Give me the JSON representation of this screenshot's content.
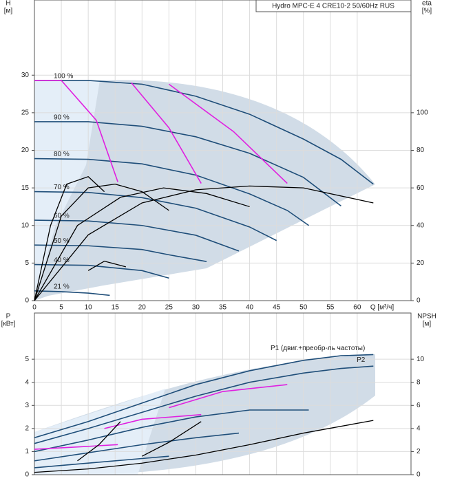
{
  "chart_data": [
    {
      "type": "line",
      "title": "Hydro MPC-E 4 CRE10-2 50/60Hz RUS",
      "ylabel": [
        "H",
        "[м]"
      ],
      "y2label": [
        "eta",
        "[%]"
      ],
      "xlabel": "Q [м³/ч]",
      "xlim": [
        0,
        70
      ],
      "xticks": [
        0,
        5,
        10,
        15,
        20,
        25,
        30,
        35,
        40,
        45,
        50,
        55,
        60
      ],
      "xtick_labels": true,
      "ylim": [
        0,
        40
      ],
      "yticks": [
        0,
        5,
        10,
        15,
        20,
        25,
        30
      ],
      "y2lim": [
        0,
        160
      ],
      "y2ticks": [
        0,
        20,
        40,
        60,
        80,
        100
      ],
      "grid": true,
      "series_labels": "start",
      "series": [
        {
          "name": "100 %",
          "color": "#1f4e79",
          "x": [
            0,
            10,
            20,
            30,
            40,
            50,
            57,
            63
          ],
          "values": [
            29.3,
            29.3,
            28.8,
            27.2,
            24.8,
            21.5,
            18.8,
            15.5
          ]
        },
        {
          "name": "90 %",
          "color": "#1f4e79",
          "x": [
            0,
            10,
            20,
            30,
            40,
            50,
            57
          ],
          "values": [
            23.8,
            23.8,
            23.2,
            21.8,
            19.6,
            16.4,
            12.6
          ]
        },
        {
          "name": "80 %",
          "color": "#1f4e79",
          "x": [
            0,
            10,
            20,
            30,
            40,
            47,
            51
          ],
          "values": [
            18.9,
            18.8,
            18.2,
            16.7,
            14.2,
            12,
            10
          ]
        },
        {
          "name": "70 %",
          "color": "#1f4e79",
          "x": [
            0,
            10,
            20,
            30,
            40,
            45
          ],
          "values": [
            14.5,
            14.4,
            13.7,
            12.3,
            9.8,
            8
          ]
        },
        {
          "name": "60 %",
          "color": "#1f4e79",
          "x": [
            0,
            10,
            20,
            30,
            38
          ],
          "values": [
            10.7,
            10.6,
            10,
            8.7,
            6.6
          ]
        },
        {
          "name": "50 %",
          "color": "#1f4e79",
          "x": [
            0,
            10,
            20,
            25,
            32
          ],
          "values": [
            7.4,
            7.3,
            6.8,
            6.1,
            5.2
          ]
        },
        {
          "name": "40 %",
          "color": "#1f4e79",
          "x": [
            0,
            10,
            20,
            25
          ],
          "values": [
            4.8,
            4.7,
            4,
            3
          ]
        },
        {
          "name": "21 %",
          "color": "#1f4e79",
          "x": [
            0,
            5,
            10,
            14
          ],
          "values": [
            1.3,
            1.2,
            1,
            0.7
          ]
        },
        {
          "color": "#e020e0",
          "x": [
            0,
            5,
            11.5,
            15.5
          ],
          "values": [
            29.3,
            29.3,
            24,
            15.8
          ]
        },
        {
          "color": "#e020e0",
          "x": [
            18,
            25,
            31
          ],
          "values": [
            29,
            23,
            15.6
          ]
        },
        {
          "color": "#e020e0",
          "x": [
            25,
            37,
            47
          ],
          "values": [
            28.8,
            22.5,
            15.6
          ]
        },
        {
          "color": "#000000",
          "axis": "y2",
          "x": [
            0,
            10,
            20,
            30,
            40,
            50,
            63
          ],
          "values": [
            0,
            35,
            52,
            59,
            61,
            60,
            52
          ]
        },
        {
          "color": "#000000",
          "axis": "y2",
          "x": [
            0,
            5,
            10,
            15,
            20,
            25
          ],
          "values": [
            0,
            45,
            60,
            62,
            58,
            48
          ]
        },
        {
          "color": "#000000",
          "axis": "y2",
          "x": [
            0,
            3,
            6,
            10,
            13
          ],
          "values": [
            0,
            40,
            62,
            66,
            58
          ]
        },
        {
          "color": "#000000",
          "axis": "y2",
          "x": [
            0,
            8,
            16,
            24,
            32,
            40
          ],
          "values": [
            0,
            40,
            55,
            60,
            57,
            50
          ]
        },
        {
          "color": "#000000",
          "axis": "y2",
          "x": [
            10,
            13,
            17
          ],
          "values": [
            16,
            21,
            18
          ]
        }
      ]
    },
    {
      "type": "line",
      "ylabel": [
        "P",
        "[кВт]"
      ],
      "y2label": [
        "NPSH",
        "[м]"
      ],
      "xlim": [
        0,
        70
      ],
      "xticks": [
        0,
        5,
        10,
        15,
        20,
        25,
        30,
        35,
        40,
        45,
        50,
        55,
        60
      ],
      "xtick_labels": false,
      "ylim": [
        0,
        7
      ],
      "yticks": [
        0,
        1,
        2,
        3,
        4,
        5
      ],
      "y2lim": [
        0,
        14
      ],
      "y2ticks": [
        0,
        2,
        4,
        6,
        8,
        10
      ],
      "grid": true,
      "series_labels": "end",
      "series": [
        {
          "name": "P1 (двиг.+преобр-ль частоты)",
          "color": "#1f4e79",
          "x": [
            0,
            10,
            20,
            30,
            40,
            50,
            57,
            63
          ],
          "values": [
            1.6,
            2.3,
            3.1,
            3.9,
            4.5,
            4.95,
            5.15,
            5.2
          ]
        },
        {
          "name": "P2",
          "color": "#1f4e79",
          "x": [
            0,
            10,
            20,
            30,
            40,
            50,
            57,
            63
          ],
          "values": [
            1.35,
            2,
            2.7,
            3.4,
            4,
            4.4,
            4.6,
            4.7
          ]
        },
        {
          "color": "#1f4e79",
          "x": [
            0,
            10,
            20,
            30,
            40,
            51
          ],
          "values": [
            1,
            1.5,
            2.05,
            2.5,
            2.8,
            2.8
          ]
        },
        {
          "color": "#1f4e79",
          "x": [
            0,
            10,
            20,
            30,
            38
          ],
          "values": [
            0.6,
            0.95,
            1.3,
            1.6,
            1.8
          ]
        },
        {
          "color": "#1f4e79",
          "x": [
            0,
            10,
            20,
            25
          ],
          "values": [
            0.3,
            0.5,
            0.7,
            0.8
          ]
        },
        {
          "color": "#e020e0",
          "x": [
            25,
            35,
            47
          ],
          "values": [
            2.9,
            3.6,
            3.9
          ]
        },
        {
          "color": "#e020e0",
          "x": [
            13,
            20,
            31
          ],
          "values": [
            2,
            2.4,
            2.6
          ]
        },
        {
          "color": "#e020e0",
          "x": [
            0,
            8,
            15.5
          ],
          "values": [
            1.1,
            1.2,
            1.3
          ]
        },
        {
          "color": "#000000",
          "axis": "y2",
          "x": [
            0,
            10,
            20,
            30,
            40,
            50,
            63
          ],
          "values": [
            0.2,
            0.5,
            1,
            1.7,
            2.6,
            3.6,
            4.7
          ]
        },
        {
          "color": "#000000",
          "axis": "y2",
          "x": [
            20,
            25,
            31
          ],
          "values": [
            1.6,
            2.8,
            4.6
          ]
        },
        {
          "color": "#000000",
          "axis": "y2",
          "x": [
            8,
            12,
            16
          ],
          "values": [
            1.2,
            2.6,
            4.6
          ]
        }
      ]
    }
  ]
}
